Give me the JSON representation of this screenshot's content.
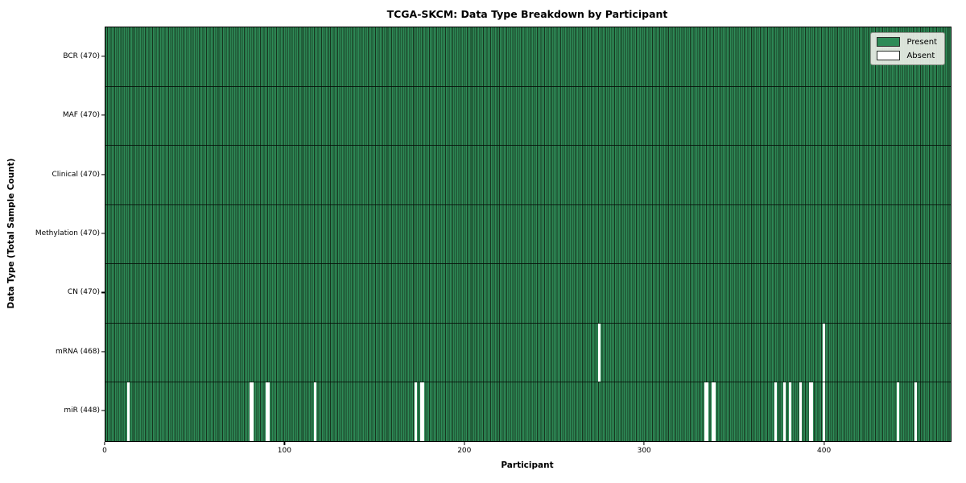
{
  "chart_data": {
    "type": "heatmap",
    "title": "TCGA-SKCM: Data Type Breakdown by Participant",
    "xlabel": "Participant",
    "ylabel": "Data Type (Total Sample Count)",
    "x_ticks": [
      0,
      100,
      200,
      300,
      400
    ],
    "x_range": [
      0,
      470
    ],
    "n_participants": 470,
    "legend_position": "upper right",
    "grid": false,
    "legend": [
      {
        "label": "Present",
        "color": "#2e8b57"
      },
      {
        "label": "Absent",
        "color": "#ffffff"
      }
    ],
    "colors": {
      "present": "#2e8b57",
      "bar_edge": "#17351f",
      "absent": "#ffffff",
      "frame": "#000000"
    },
    "rows": [
      {
        "label": "BCR (470)",
        "data_type": "BCR",
        "present_count": 470,
        "absent_count": 0,
        "absent_participants": []
      },
      {
        "label": "MAF (470)",
        "data_type": "MAF",
        "present_count": 470,
        "absent_count": 0,
        "absent_participants": []
      },
      {
        "label": "Clinical (470)",
        "data_type": "Clinical",
        "present_count": 470,
        "absent_count": 0,
        "absent_participants": []
      },
      {
        "label": "Methylation (470)",
        "data_type": "Methylation",
        "present_count": 470,
        "absent_count": 0,
        "absent_participants": []
      },
      {
        "label": "CN (470)",
        "data_type": "CN",
        "present_count": 470,
        "absent_count": 0,
        "absent_participants": []
      },
      {
        "label": "mRNA (468)",
        "data_type": "mRNA",
        "present_count": 468,
        "absent_count": 2,
        "absent_participants": [
          274,
          399
        ]
      },
      {
        "label": "miR (448)",
        "data_type": "miR",
        "present_count": 448,
        "absent_count": 22,
        "absent_participants": [
          12,
          80,
          81,
          89,
          90,
          116,
          172,
          175,
          176,
          333,
          334,
          337,
          338,
          372,
          377,
          380,
          386,
          391,
          392,
          399,
          440,
          450
        ]
      }
    ]
  }
}
